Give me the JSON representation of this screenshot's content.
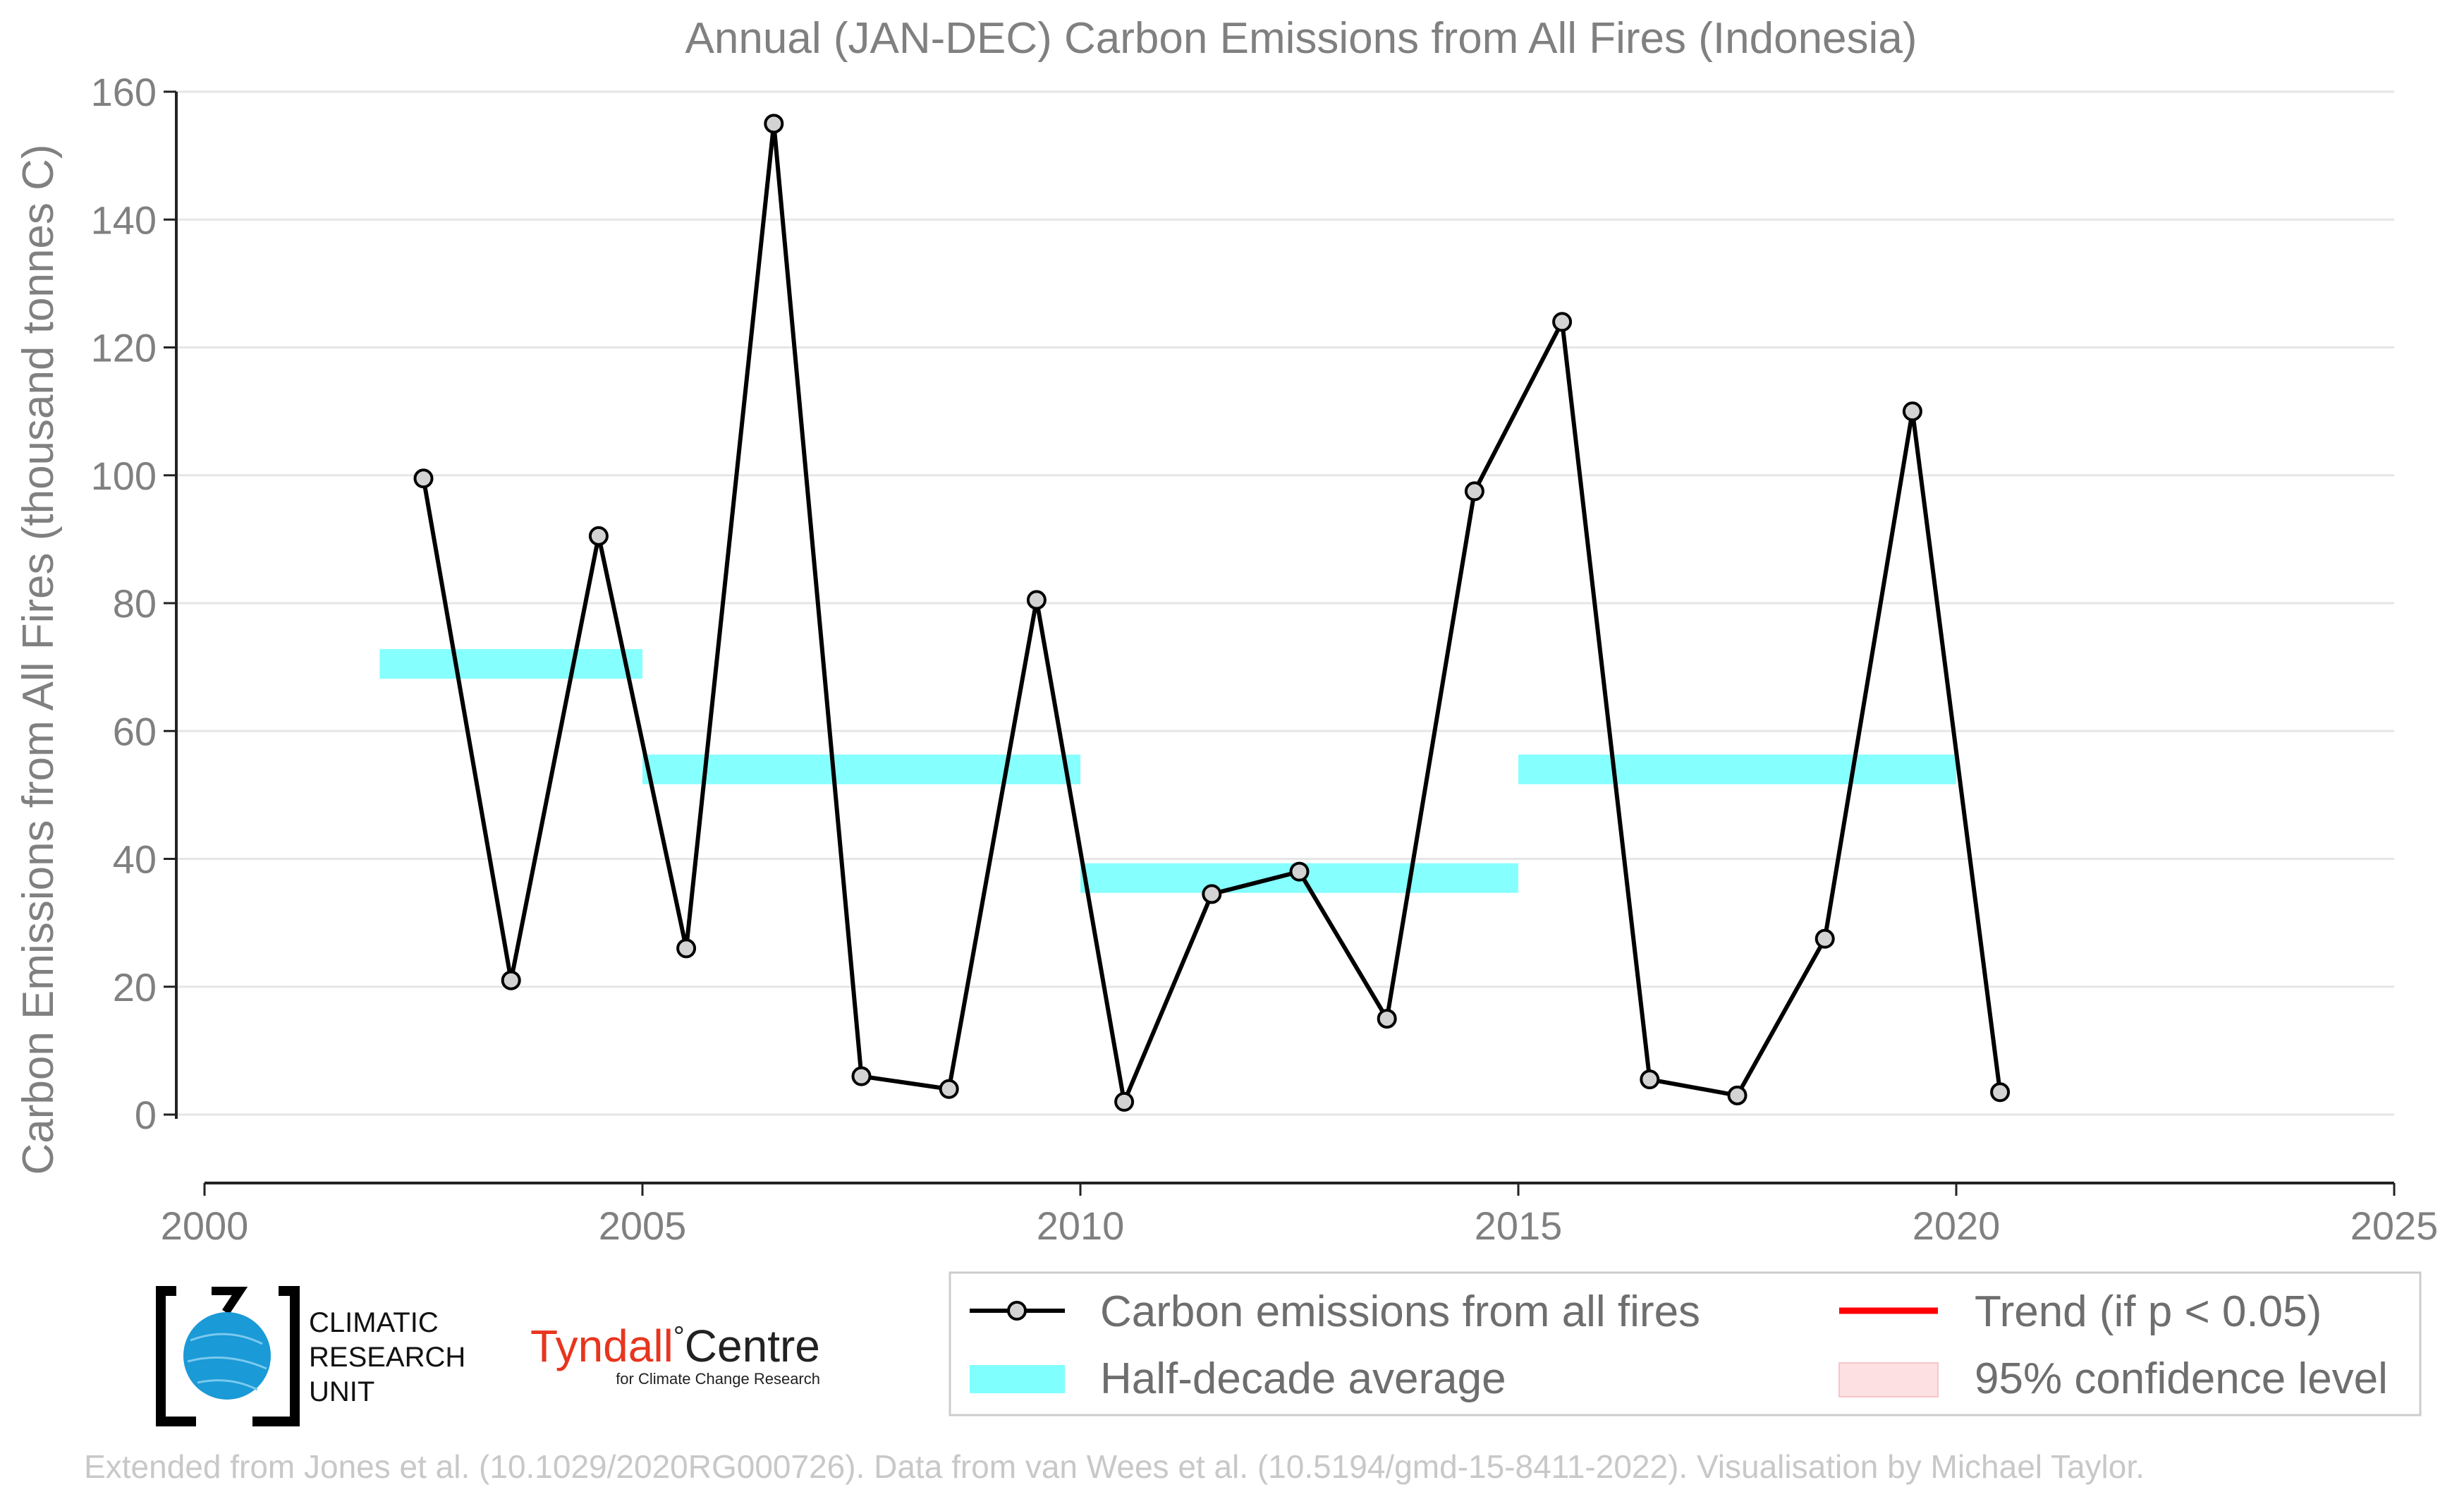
{
  "chart_data": {
    "type": "line",
    "title": "Annual (JAN-DEC) Carbon Emissions from All Fires (Indonesia)",
    "xlabel": "",
    "ylabel": "Carbon Emissions from All Fires (thousand tonnes C)",
    "xlim": [
      2000,
      2025
    ],
    "ylim": [
      -10,
      160
    ],
    "x_ticks": [
      2000,
      2005,
      2010,
      2015,
      2020,
      2025
    ],
    "y_ticks": [
      0,
      20,
      40,
      60,
      80,
      100,
      120,
      140,
      160
    ],
    "grid": "horizontal",
    "series": [
      {
        "name": "Carbon emissions from all fires",
        "color": "#000000",
        "x": [
          2002.5,
          2003.5,
          2004.5,
          2005.5,
          2006.5,
          2007.5,
          2008.5,
          2009.5,
          2010.5,
          2011.5,
          2012.5,
          2013.5,
          2014.5,
          2015.5,
          2016.5,
          2017.5,
          2018.5,
          2019.5,
          2020.5
        ],
        "y": [
          99.5,
          21,
          90.5,
          26,
          155,
          6,
          4,
          80.5,
          2,
          34.5,
          38,
          15,
          97.5,
          124,
          5.5,
          3,
          27.5,
          110,
          3.5
        ]
      }
    ],
    "half_decade_average": {
      "name": "Half-decade average",
      "color": "#80ffff",
      "segments": [
        {
          "x_start": 2002,
          "x_end": 2005,
          "value": 70.5
        },
        {
          "x_start": 2005,
          "x_end": 2010,
          "value": 54
        },
        {
          "x_start": 2010,
          "x_end": 2015,
          "value": 37
        },
        {
          "x_start": 2015,
          "x_end": 2020,
          "value": 54
        }
      ]
    },
    "legend": {
      "placement": "bottom-right",
      "entries": [
        {
          "label": "Carbon emissions from all fires",
          "kind": "line-marker",
          "color": "#000000"
        },
        {
          "label": "Trend (if p < 0.05)",
          "kind": "line",
          "color": "#ff0000"
        },
        {
          "label": "Half-decade average",
          "kind": "band",
          "color": "#80ffff"
        },
        {
          "label": "95% confidence level",
          "kind": "patch",
          "color": "#fde0e2"
        }
      ]
    }
  },
  "logos": {
    "cru": {
      "lines": [
        "CLIMATIC",
        "RESEARCH",
        "UNIT"
      ],
      "globe_color": "#1a9ad6"
    },
    "tyndall": {
      "main": "Tyndall",
      "degree": "°",
      "main2": "Centre",
      "sub": "for Climate Change Research",
      "color": "#e8351e"
    }
  },
  "credit": "Extended from Jones et al. (10.1029/2020RG000726). Data from van Wees et al. (10.5194/gmd-15-8411-2022). Visualisation by Michael Taylor."
}
